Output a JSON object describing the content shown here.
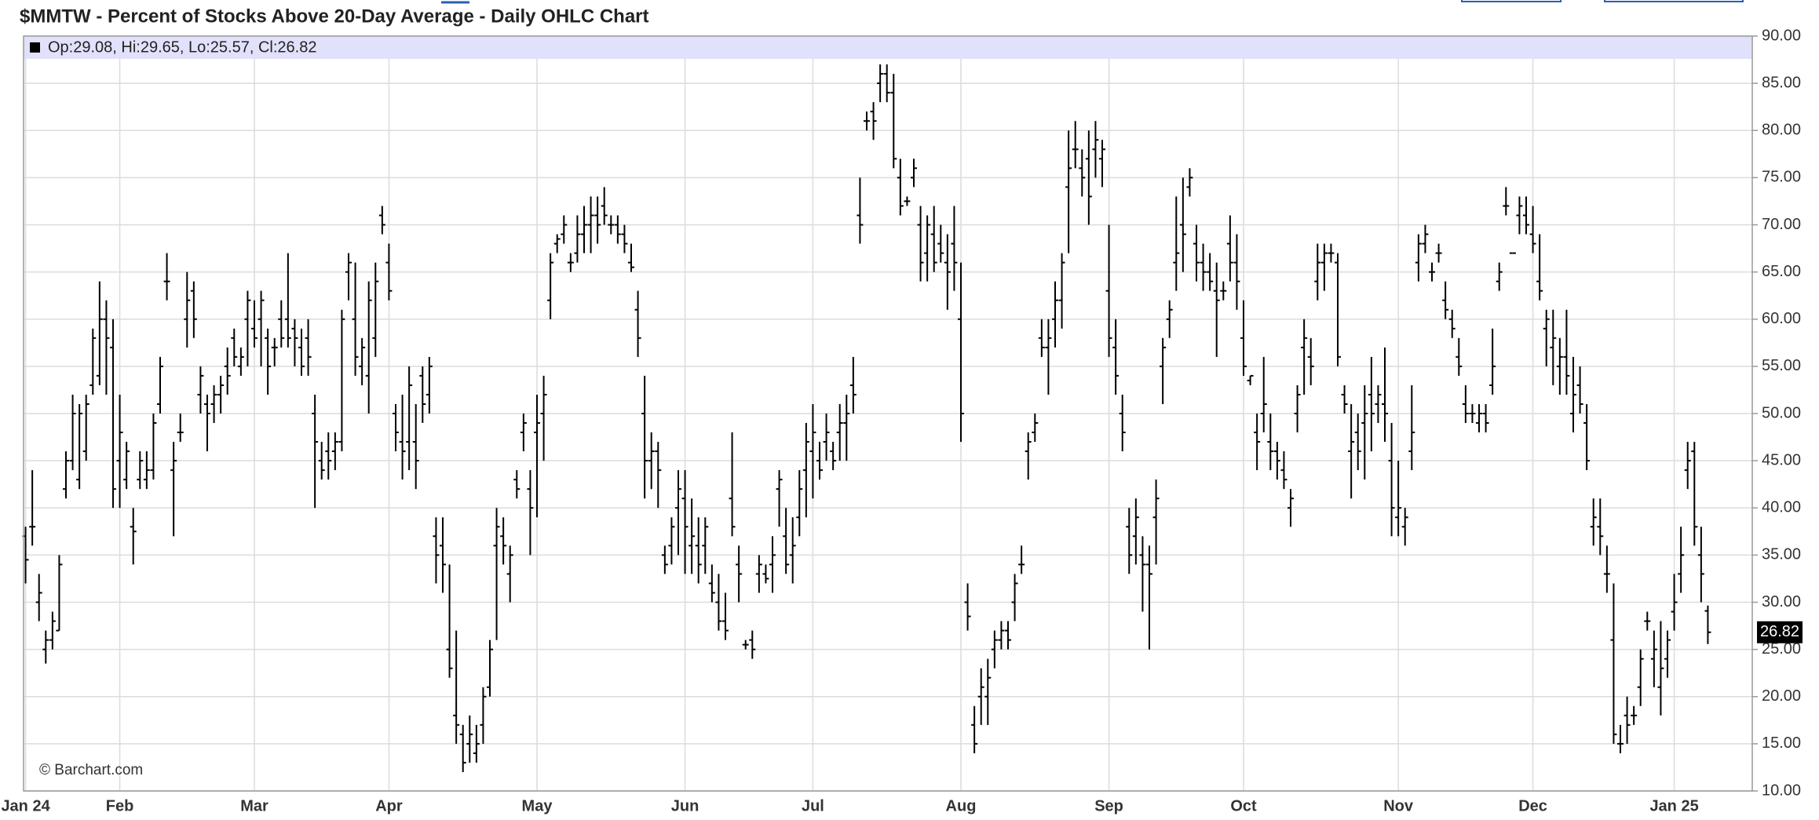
{
  "chart_data": {
    "type": "ohlc",
    "title": "$MMTW - Percent of Stocks Above 20-Day Average - Daily OHLC Chart",
    "info_label": "Op:29.08, Hi:29.65, Lo:25.57, Cl:26.82",
    "credit": "© Barchart.com",
    "color": "#000000",
    "grid": true,
    "xlim": [
      -0.3,
      256.6
    ],
    "xticks": [
      {
        "value": 0,
        "label": "Jan 24"
      },
      {
        "value": 14,
        "label": "Feb"
      },
      {
        "value": 34,
        "label": "Mar"
      },
      {
        "value": 54,
        "label": "Apr"
      },
      {
        "value": 76,
        "label": "May"
      },
      {
        "value": 98,
        "label": "Jun"
      },
      {
        "value": 117,
        "label": "Jul"
      },
      {
        "value": 139,
        "label": "Aug"
      },
      {
        "value": 161,
        "label": "Sep"
      },
      {
        "value": 181,
        "label": "Oct"
      },
      {
        "value": 204,
        "label": "Nov"
      },
      {
        "value": 224,
        "label": "Dec"
      },
      {
        "value": 245,
        "label": "Jan 25"
      }
    ],
    "ylim": [
      10,
      90
    ],
    "yticks": [
      {
        "value": 10,
        "label": "10.00"
      },
      {
        "value": 15,
        "label": "15.00"
      },
      {
        "value": 20,
        "label": "20.00"
      },
      {
        "value": 25,
        "label": "25.00"
      },
      {
        "value": 30,
        "label": "30.00"
      },
      {
        "value": 35,
        "label": "35.00"
      },
      {
        "value": 40,
        "label": "40.00"
      },
      {
        "value": 45,
        "label": "45.00"
      },
      {
        "value": 50,
        "label": "50.00"
      },
      {
        "value": 55,
        "label": "55.00"
      },
      {
        "value": 60,
        "label": "60.00"
      },
      {
        "value": 65,
        "label": "65.00"
      },
      {
        "value": 70,
        "label": "70.00"
      },
      {
        "value": 75,
        "label": "75.00"
      },
      {
        "value": 80,
        "label": "80.00"
      },
      {
        "value": 85,
        "label": "85.00"
      },
      {
        "value": 90,
        "label": "90.00"
      }
    ],
    "ohlc": [
      [
        37,
        38,
        32,
        34.5
      ],
      [
        38,
        44,
        36,
        38
      ],
      [
        30,
        33,
        28,
        31
      ],
      [
        25,
        27,
        23.5,
        26
      ],
      [
        26,
        29,
        25,
        28
      ],
      [
        27,
        35,
        27,
        34
      ],
      [
        42,
        46,
        41,
        45
      ],
      [
        45,
        52,
        44,
        50
      ],
      [
        43,
        51,
        42,
        50
      ],
      [
        46,
        52,
        45,
        51
      ],
      [
        53,
        59,
        52,
        58
      ],
      [
        54,
        64,
        53,
        60
      ],
      [
        60,
        62,
        52,
        58
      ],
      [
        57,
        60,
        40,
        42
      ],
      [
        45,
        52,
        40,
        48
      ],
      [
        43,
        47,
        42,
        46
      ],
      [
        38,
        40,
        34,
        37.5
      ],
      [
        43,
        46,
        42,
        45
      ],
      [
        43,
        46,
        42,
        44
      ],
      [
        44,
        50,
        43,
        49
      ],
      [
        51,
        56,
        50,
        55
      ],
      [
        64,
        67,
        62,
        64
      ],
      [
        44,
        47,
        37,
        45
      ],
      [
        48,
        50,
        47,
        48
      ],
      [
        60,
        65,
        57,
        62
      ],
      [
        63,
        64,
        58,
        60
      ],
      [
        52,
        55,
        50,
        54
      ],
      [
        51,
        52,
        46,
        50
      ],
      [
        51,
        53,
        49,
        52
      ],
      [
        52,
        54,
        50,
        53
      ],
      [
        55,
        57,
        52,
        54
      ],
      [
        58,
        59,
        55,
        56
      ],
      [
        55,
        57,
        54,
        56
      ],
      [
        60,
        63,
        55,
        62
      ],
      [
        59,
        62,
        57,
        58
      ],
      [
        60,
        63,
        55,
        62
      ],
      [
        58,
        59,
        52,
        55
      ],
      [
        57,
        58,
        55,
        57
      ],
      [
        60,
        62,
        57,
        58
      ],
      [
        60,
        67,
        57,
        58
      ],
      [
        59,
        60,
        55,
        58
      ],
      [
        57,
        59,
        54,
        55
      ],
      [
        58,
        60,
        54,
        56
      ],
      [
        50,
        52,
        40,
        47
      ],
      [
        45,
        47,
        43,
        44
      ],
      [
        46,
        48,
        43,
        45
      ],
      [
        46,
        48,
        44,
        47
      ],
      [
        47,
        61,
        46,
        60
      ],
      [
        65,
        67,
        62,
        66
      ],
      [
        60,
        66,
        54,
        56
      ],
      [
        55,
        58,
        53,
        57
      ],
      [
        54,
        64,
        50,
        62
      ],
      [
        58,
        66,
        56,
        64
      ],
      [
        71,
        72,
        69,
        70
      ],
      [
        66,
        68,
        62,
        63
      ],
      [
        50,
        51,
        46,
        48
      ],
      [
        47,
        52,
        43,
        46
      ],
      [
        47,
        55,
        44,
        53
      ],
      [
        47,
        51,
        42,
        45
      ],
      [
        54,
        55,
        49,
        51
      ],
      [
        52,
        56,
        50,
        55
      ],
      [
        37,
        39,
        32,
        35
      ],
      [
        36,
        39,
        31,
        34
      ],
      [
        25,
        34,
        22,
        23
      ],
      [
        18,
        27,
        15,
        17
      ],
      [
        16,
        17,
        12,
        13
      ],
      [
        15,
        18,
        13,
        16
      ],
      [
        14,
        17,
        13,
        15
      ],
      [
        17,
        21,
        15,
        20
      ],
      [
        21,
        26,
        20,
        25
      ],
      [
        36,
        40,
        26,
        38
      ],
      [
        37,
        39,
        34,
        36
      ],
      [
        33,
        36,
        30,
        35
      ],
      [
        43,
        44,
        41,
        42
      ],
      [
        48,
        50,
        46,
        49
      ],
      [
        42,
        44,
        35,
        40
      ],
      [
        48,
        52,
        39,
        49
      ],
      [
        50,
        54,
        45,
        52
      ],
      [
        62,
        67,
        60,
        66
      ],
      [
        68,
        69,
        67,
        68.5
      ],
      [
        69,
        71,
        68,
        70
      ],
      [
        66,
        67,
        65,
        66
      ],
      [
        67,
        71,
        66,
        69
      ],
      [
        69,
        72,
        67,
        70
      ],
      [
        70,
        73,
        67,
        71
      ],
      [
        71,
        73,
        68,
        70
      ],
      [
        72,
        74,
        70,
        71
      ],
      [
        70,
        71,
        69,
        70
      ],
      [
        70,
        71,
        68,
        69
      ],
      [
        69,
        70,
        67,
        68
      ],
      [
        66,
        68,
        65,
        65.5
      ],
      [
        61,
        63,
        56,
        58
      ],
      [
        50,
        54,
        41,
        45
      ],
      [
        45,
        48,
        42,
        46
      ],
      [
        46,
        47,
        40,
        44
      ],
      [
        35,
        36,
        33,
        34
      ],
      [
        36,
        39,
        34,
        38
      ],
      [
        40,
        44,
        35,
        42
      ],
      [
        41,
        44,
        33,
        38
      ],
      [
        36,
        41,
        33,
        37
      ],
      [
        36,
        39,
        32,
        34
      ],
      [
        36,
        39,
        33,
        38
      ],
      [
        32,
        34,
        30,
        31
      ],
      [
        30,
        33,
        27,
        28
      ],
      [
        28,
        31,
        26,
        27
      ],
      [
        41,
        48,
        37,
        38
      ],
      [
        34,
        36,
        30,
        33
      ],
      [
        25.5,
        26,
        25,
        25.5
      ],
      [
        26,
        27,
        24,
        25
      ],
      [
        33,
        35,
        31,
        34
      ],
      [
        33,
        34,
        32,
        32.5
      ],
      [
        34,
        37,
        31,
        35
      ],
      [
        42,
        44,
        38,
        43
      ],
      [
        37,
        40,
        33,
        34
      ],
      [
        35,
        39,
        32,
        36
      ],
      [
        39,
        44,
        37,
        42
      ],
      [
        44,
        49,
        39,
        47
      ],
      [
        46,
        51,
        41,
        48
      ],
      [
        45,
        47,
        43,
        44
      ],
      [
        47,
        50,
        45,
        48
      ],
      [
        46,
        47,
        44,
        45
      ],
      [
        48,
        51,
        45,
        49
      ],
      [
        49,
        52,
        45,
        50
      ],
      [
        53,
        56,
        50,
        52
      ],
      [
        71,
        75,
        68,
        70
      ],
      [
        81,
        82,
        80,
        81
      ],
      [
        82,
        83,
        79,
        81
      ],
      [
        85,
        87,
        83,
        86
      ],
      [
        86,
        87,
        83,
        84
      ],
      [
        84,
        86,
        76,
        77
      ],
      [
        75,
        77,
        71,
        72
      ],
      [
        72.5,
        73,
        72,
        72.5
      ],
      [
        75,
        77,
        74,
        76
      ],
      [
        70,
        72,
        64,
        66
      ],
      [
        67,
        71,
        64,
        70
      ],
      [
        69,
        72,
        65,
        66
      ],
      [
        68,
        70,
        66,
        67
      ],
      [
        66,
        69,
        61,
        65
      ],
      [
        68,
        72,
        63,
        66
      ],
      [
        60,
        66,
        47,
        50
      ],
      [
        30,
        32,
        27,
        28.5
      ],
      [
        17,
        19,
        14,
        15
      ],
      [
        20,
        23,
        17,
        21
      ],
      [
        20,
        24,
        17,
        22
      ],
      [
        25,
        27,
        23,
        26
      ],
      [
        26,
        28,
        25,
        27
      ],
      [
        27,
        28,
        25,
        26
      ],
      [
        30,
        33,
        28,
        32
      ],
      [
        34,
        36,
        33,
        34
      ],
      [
        46,
        48,
        43,
        47
      ],
      [
        48,
        50,
        47,
        49
      ],
      [
        58,
        60,
        56,
        57
      ],
      [
        57,
        60,
        52,
        58
      ],
      [
        60,
        64,
        57,
        62
      ],
      [
        62,
        67,
        59,
        66
      ],
      [
        74,
        80,
        67,
        76
      ],
      [
        78,
        81,
        76,
        78
      ],
      [
        76,
        78,
        73,
        75
      ],
      [
        77,
        80,
        70,
        73
      ],
      [
        78,
        81,
        75,
        79
      ],
      [
        77,
        79,
        74,
        78
      ],
      [
        63,
        70,
        56,
        58
      ],
      [
        57,
        60,
        52,
        54
      ],
      [
        50,
        52,
        46,
        48
      ],
      [
        38,
        40,
        33,
        35
      ],
      [
        37,
        41,
        34,
        39
      ],
      [
        35,
        37,
        29,
        34
      ],
      [
        34,
        36,
        25,
        33
      ],
      [
        39,
        43,
        34,
        41
      ],
      [
        55,
        58,
        51,
        57
      ],
      [
        60,
        62,
        58,
        61
      ],
      [
        66,
        73,
        63,
        67
      ],
      [
        70,
        75,
        65,
        69
      ],
      [
        74,
        76,
        73,
        75
      ],
      [
        68,
        70,
        64,
        66
      ],
      [
        66,
        68,
        63,
        65
      ],
      [
        65,
        67,
        63,
        64
      ],
      [
        63,
        66,
        56,
        62
      ],
      [
        63,
        64,
        62,
        63
      ],
      [
        68,
        71,
        64,
        66
      ],
      [
        66,
        69,
        61,
        64
      ],
      [
        58,
        62,
        54,
        55
      ],
      [
        53.5,
        54,
        53,
        54
      ],
      [
        48,
        50,
        44,
        47
      ],
      [
        50,
        56,
        48,
        51
      ],
      [
        47,
        50,
        44,
        46
      ],
      [
        46,
        47,
        43,
        45
      ],
      [
        44,
        46,
        42,
        43
      ],
      [
        40,
        42,
        38,
        41
      ],
      [
        50,
        53,
        48,
        52
      ],
      [
        57,
        60,
        52,
        58
      ],
      [
        56,
        58,
        53,
        55
      ],
      [
        64,
        68,
        62,
        66
      ],
      [
        66,
        68,
        63,
        67
      ],
      [
        67,
        68,
        66,
        67
      ],
      [
        66,
        67,
        55,
        56
      ],
      [
        52,
        53,
        50,
        51
      ],
      [
        46,
        51,
        41,
        47
      ],
      [
        48,
        50,
        44,
        46
      ],
      [
        49,
        53,
        43,
        50
      ],
      [
        52,
        56,
        46,
        50
      ],
      [
        51,
        53,
        49,
        52
      ],
      [
        51,
        57,
        47,
        50
      ],
      [
        45,
        49,
        37,
        40
      ],
      [
        39,
        45,
        37,
        40
      ],
      [
        38,
        40,
        36,
        39
      ],
      [
        46,
        53,
        44,
        48
      ],
      [
        66,
        69,
        64,
        68
      ],
      [
        68,
        70,
        67,
        69
      ],
      [
        65,
        66,
        64,
        65
      ],
      [
        67,
        68,
        66,
        67
      ],
      [
        62,
        64,
        60,
        61
      ],
      [
        60,
        61,
        58,
        59
      ],
      [
        56,
        58,
        54,
        55
      ],
      [
        51,
        53,
        49,
        50
      ],
      [
        50,
        51,
        49,
        50
      ],
      [
        49,
        51,
        48,
        50
      ],
      [
        50,
        51,
        48,
        49
      ],
      [
        53,
        59,
        52,
        55
      ],
      [
        64,
        66,
        63,
        65
      ],
      [
        72,
        74,
        71,
        72
      ],
      [
        67,
        67,
        67,
        67
      ],
      [
        71,
        73,
        69,
        72
      ],
      [
        71,
        73,
        69,
        70
      ],
      [
        69,
        72,
        67,
        68
      ],
      [
        64,
        69,
        62,
        63
      ],
      [
        59,
        61,
        55,
        60
      ],
      [
        57,
        61,
        53,
        58
      ],
      [
        55,
        58,
        52,
        56
      ],
      [
        56,
        61,
        52,
        54
      ],
      [
        50,
        56,
        48,
        52
      ],
      [
        53,
        55,
        50,
        51
      ],
      [
        49,
        51,
        44,
        45
      ],
      [
        38,
        41,
        36,
        39
      ],
      [
        38,
        41,
        35,
        37
      ],
      [
        33,
        36,
        31,
        33
      ],
      [
        26,
        32,
        15,
        16
      ],
      [
        15,
        17,
        14,
        15
      ],
      [
        18,
        20,
        15,
        17
      ],
      [
        18,
        19,
        17,
        18
      ],
      [
        21,
        25,
        19,
        24
      ],
      [
        28,
        29,
        27,
        28
      ],
      [
        24,
        27,
        21,
        25
      ],
      [
        21,
        28,
        18,
        23
      ],
      [
        24,
        27,
        22,
        26
      ],
      [
        29,
        33,
        27,
        30
      ],
      [
        33,
        38,
        31,
        35
      ],
      [
        44,
        47,
        42,
        45
      ],
      [
        46,
        47,
        36,
        38
      ],
      [
        35,
        38,
        30,
        33
      ],
      [
        29.08,
        29.65,
        25.57,
        26.82
      ]
    ]
  }
}
